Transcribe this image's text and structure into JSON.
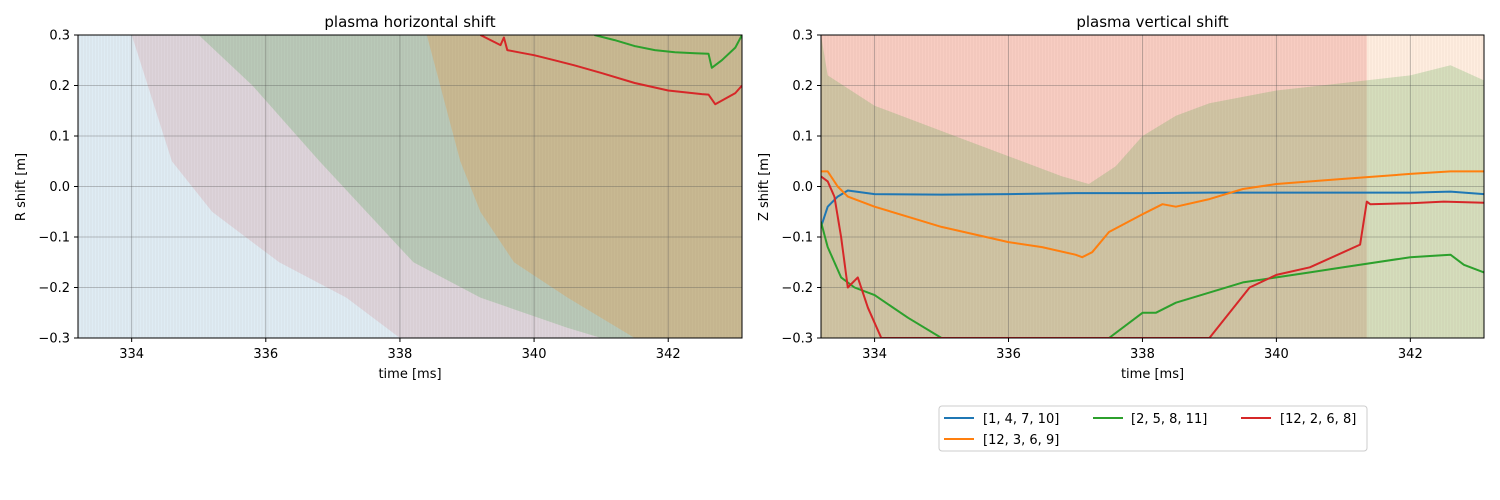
{
  "chart_data": [
    {
      "type": "line",
      "title": "plasma horizontal shift",
      "xlabel": "time [ms]",
      "ylabel": "R shift [m]",
      "xlim": [
        333.2,
        343.1
      ],
      "ylim": [
        -0.3,
        0.3
      ],
      "xticks": [
        334,
        336,
        338,
        340,
        342
      ],
      "yticks": [
        -0.3,
        -0.2,
        -0.1,
        0.0,
        0.1,
        0.2,
        0.3
      ],
      "xtick_labels": [
        "334",
        "336",
        "338",
        "340",
        "342"
      ],
      "ytick_labels": [
        "−0.3",
        "−0.2",
        "−0.1",
        "0.0",
        "0.1",
        "0.2",
        "0.3"
      ],
      "grid": true,
      "bands": [
        {
          "color": "#1f77b4",
          "alpha": 0.14,
          "upper": [
            [
              333.2,
              0.3
            ],
            [
              343.1,
              0.3
            ]
          ],
          "lower": [
            [
              333.2,
              -0.3
            ],
            [
              343.1,
              -0.3
            ]
          ]
        },
        {
          "color": "#d62728",
          "alpha": 0.12,
          "upper": [
            [
              333.2,
              0.3
            ],
            [
              343.1,
              0.3
            ]
          ],
          "lower": [
            [
              333.2,
              0.3
            ],
            [
              334.0,
              0.3
            ],
            [
              334.6,
              0.05
            ],
            [
              335.2,
              -0.05
            ],
            [
              336.2,
              -0.15
            ],
            [
              337.2,
              -0.22
            ],
            [
              338.0,
              -0.3
            ],
            [
              343.1,
              -0.3
            ]
          ]
        },
        {
          "color": "#2ca02c",
          "alpha": 0.2,
          "upper": [
            [
              333.2,
              0.3
            ],
            [
              343.1,
              0.3
            ]
          ],
          "lower": [
            [
              333.2,
              0.3
            ],
            [
              335.0,
              0.3
            ],
            [
              335.8,
              0.2
            ],
            [
              336.8,
              0.05
            ],
            [
              337.5,
              -0.05
            ],
            [
              338.2,
              -0.15
            ],
            [
              339.2,
              -0.22
            ],
            [
              340.5,
              -0.28
            ],
            [
              341.0,
              -0.3
            ],
            [
              343.1,
              -0.3
            ]
          ]
        },
        {
          "color": "#ff7f0e",
          "alpha": 0.22,
          "upper": [
            [
              333.2,
              0.3
            ],
            [
              343.1,
              0.3
            ]
          ],
          "lower": [
            [
              333.2,
              0.3
            ],
            [
              338.4,
              0.3
            ],
            [
              338.6,
              0.2
            ],
            [
              338.9,
              0.05
            ],
            [
              339.2,
              -0.05
            ],
            [
              339.7,
              -0.15
            ],
            [
              340.5,
              -0.22
            ],
            [
              341.5,
              -0.3
            ],
            [
              343.1,
              -0.3
            ]
          ]
        }
      ],
      "series": [
        {
          "name": "[2, 5, 8, 11]",
          "color": "#2ca02c",
          "x": [
            340.9,
            341.2,
            341.5,
            341.8,
            342.1,
            342.4,
            342.6,
            342.65,
            342.8,
            343.0,
            343.1
          ],
          "y": [
            0.3,
            0.29,
            0.278,
            0.27,
            0.266,
            0.264,
            0.263,
            0.235,
            0.25,
            0.275,
            0.3
          ]
        },
        {
          "name": "[12, 2, 6, 8]",
          "color": "#d62728",
          "x": [
            339.2,
            339.5,
            339.55,
            339.6,
            339.8,
            340.0,
            340.3,
            340.6,
            341.0,
            341.5,
            342.0,
            342.5,
            342.6,
            342.7,
            343.0,
            343.1
          ],
          "y": [
            0.3,
            0.28,
            0.295,
            0.27,
            0.265,
            0.26,
            0.25,
            0.24,
            0.225,
            0.205,
            0.19,
            0.183,
            0.182,
            0.163,
            0.185,
            0.2
          ]
        }
      ]
    },
    {
      "type": "line",
      "title": "plasma vertical shift",
      "xlabel": "time [ms]",
      "ylabel": "Z shift [m]",
      "xlim": [
        333.2,
        343.1
      ],
      "ylim": [
        -0.3,
        0.3
      ],
      "xticks": [
        334,
        336,
        338,
        340,
        342
      ],
      "yticks": [
        -0.3,
        -0.2,
        -0.1,
        0.0,
        0.1,
        0.2,
        0.3
      ],
      "xtick_labels": [
        "334",
        "336",
        "338",
        "340",
        "342"
      ],
      "ytick_labels": [
        "−0.3",
        "−0.2",
        "−0.1",
        "0.0",
        "0.1",
        "0.2",
        "0.3"
      ],
      "grid": true,
      "bands": [
        {
          "color": "#ff7f0e",
          "alpha": 0.13,
          "upper": [
            [
              333.2,
              0.3
            ],
            [
              343.1,
              0.3
            ]
          ],
          "lower": [
            [
              333.2,
              -0.3
            ],
            [
              343.1,
              -0.3
            ]
          ]
        },
        {
          "color": "#d62728",
          "alpha": 0.16,
          "upper": [
            [
              333.2,
              0.3
            ],
            [
              341.35,
              0.3
            ]
          ],
          "lower": [
            [
              333.2,
              -0.3
            ],
            [
              341.35,
              -0.3
            ]
          ]
        },
        {
          "color": "#2ca02c",
          "alpha": 0.2,
          "upper": [
            [
              333.2,
              0.3
            ],
            [
              333.3,
              0.22
            ],
            [
              334.0,
              0.16
            ],
            [
              335.0,
              0.11
            ],
            [
              336.0,
              0.06
            ],
            [
              336.8,
              0.02
            ],
            [
              337.2,
              0.005
            ],
            [
              337.6,
              0.04
            ],
            [
              338.0,
              0.1
            ],
            [
              338.5,
              0.14
            ],
            [
              339.0,
              0.165
            ],
            [
              340.0,
              0.19
            ],
            [
              341.0,
              0.205
            ],
            [
              342.0,
              0.22
            ],
            [
              342.6,
              0.24
            ],
            [
              343.1,
              0.21
            ]
          ],
          "lower": [
            [
              333.2,
              -0.3
            ],
            [
              343.1,
              -0.3
            ]
          ]
        }
      ],
      "series": [
        {
          "name": "[1, 4, 7, 10]",
          "color": "#1f77b4",
          "x": [
            333.2,
            333.3,
            333.45,
            333.6,
            334.0,
            335.0,
            336.0,
            337.0,
            338.0,
            339.0,
            340.0,
            341.0,
            342.0,
            342.6,
            343.0,
            343.1
          ],
          "y": [
            -0.08,
            -0.04,
            -0.02,
            -0.008,
            -0.015,
            -0.016,
            -0.015,
            -0.013,
            -0.013,
            -0.012,
            -0.012,
            -0.012,
            -0.012,
            -0.01,
            -0.014,
            -0.015
          ]
        },
        {
          "name": "[12, 3, 6, 9]",
          "color": "#ff7f0e",
          "x": [
            333.2,
            333.3,
            333.45,
            333.6,
            334.0,
            334.5,
            335.0,
            335.5,
            336.0,
            336.5,
            337.0,
            337.1,
            337.25,
            337.5,
            338.0,
            338.3,
            338.5,
            339.0,
            339.5,
            340.0,
            341.0,
            342.0,
            342.6,
            343.1
          ],
          "y": [
            0.03,
            0.03,
            0.0,
            -0.02,
            -0.04,
            -0.06,
            -0.08,
            -0.095,
            -0.11,
            -0.12,
            -0.135,
            -0.14,
            -0.13,
            -0.09,
            -0.055,
            -0.035,
            -0.04,
            -0.025,
            -0.005,
            0.005,
            0.015,
            0.025,
            0.03,
            0.03
          ]
        },
        {
          "name": "[2, 5, 8, 11]",
          "color": "#2ca02c",
          "x": [
            333.2,
            333.3,
            333.5,
            333.7,
            334.0,
            334.5,
            335.0,
            335.5,
            336.0,
            336.5,
            337.0,
            337.5,
            338.0,
            338.2,
            338.5,
            339.0,
            339.5,
            340.0,
            340.5,
            341.0,
            342.0,
            342.6,
            342.8,
            343.1
          ],
          "y": [
            -0.07,
            -0.12,
            -0.18,
            -0.2,
            -0.215,
            -0.26,
            -0.3,
            -0.3,
            -0.3,
            -0.3,
            -0.3,
            -0.3,
            -0.25,
            -0.25,
            -0.23,
            -0.21,
            -0.19,
            -0.18,
            -0.17,
            -0.16,
            -0.14,
            -0.135,
            -0.155,
            -0.17
          ]
        },
        {
          "name": "[12, 2, 6, 8]",
          "color": "#d62728",
          "x": [
            333.2,
            333.3,
            333.4,
            333.5,
            333.6,
            333.75,
            333.9,
            334.1,
            334.3,
            334.5,
            334.7,
            339.0,
            339.3,
            339.6,
            340.0,
            340.5,
            341.0,
            341.25,
            341.35,
            341.4,
            342.0,
            342.5,
            343.1
          ],
          "y": [
            0.02,
            0.01,
            -0.02,
            -0.1,
            -0.2,
            -0.18,
            -0.24,
            -0.3,
            -0.3,
            -0.3,
            -0.3,
            -0.3,
            -0.25,
            -0.2,
            -0.175,
            -0.16,
            -0.13,
            -0.115,
            -0.03,
            -0.035,
            -0.033,
            -0.03,
            -0.032
          ]
        }
      ]
    }
  ],
  "legend": {
    "entries": [
      {
        "label": "[1, 4, 7, 10]",
        "color": "#1f77b4"
      },
      {
        "label": "[2, 5, 8, 11]",
        "color": "#2ca02c"
      },
      {
        "label": "[12, 2, 6, 8]",
        "color": "#d62728"
      },
      {
        "label": "[12, 3, 6, 9]",
        "color": "#ff7f0e"
      }
    ]
  }
}
